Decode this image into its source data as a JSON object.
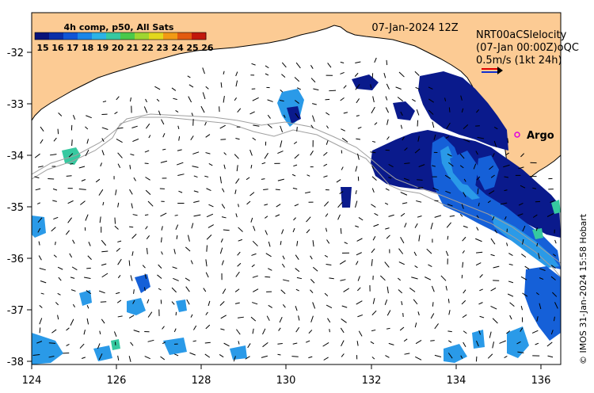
{
  "colorbar": {
    "title": "4h comp, p50, All Sats",
    "ticks": [
      "15",
      "16",
      "17",
      "18",
      "19",
      "20",
      "21",
      "22",
      "23",
      "24",
      "25",
      "26"
    ],
    "colors": [
      "#08127a",
      "#0a2fa8",
      "#1155d6",
      "#1a86e8",
      "#2bb3e6",
      "#36c9a0",
      "#4ac94a",
      "#9fd630",
      "#e3d81c",
      "#f29a14",
      "#e35a10",
      "#c2180c"
    ]
  },
  "map_date": "07-Jan-2024 12Z",
  "legend": {
    "line1": "NRT00aCSlelocity",
    "line2": "(07-Jan 00:00Z)oQC",
    "line3": "0.5m/s (1kt 24h)"
  },
  "argo_label": "Argo",
  "credit": "© IMOS 31-Jan-2024 15:58 Hobart",
  "axes": {
    "x_ticks": [
      "124",
      "126",
      "128",
      "130",
      "132",
      "134",
      "136"
    ],
    "y_ticks": [
      "-32",
      "-33",
      "-34",
      "-35",
      "-36",
      "-37",
      "-38"
    ],
    "lon_range": [
      124,
      136.7
    ],
    "lat_range": [
      -38.1,
      -31.35
    ]
  },
  "colors": {
    "land": "#fccb94",
    "ocean": "#ffffff",
    "cold_sst": "#0a1a8c",
    "mid_sst": "#1560d8",
    "warm_sst": "#2a9ae8",
    "argo_marker": "#e000e0",
    "arrow_red": "#e00000",
    "arrow_blue": "#1030d0"
  }
}
